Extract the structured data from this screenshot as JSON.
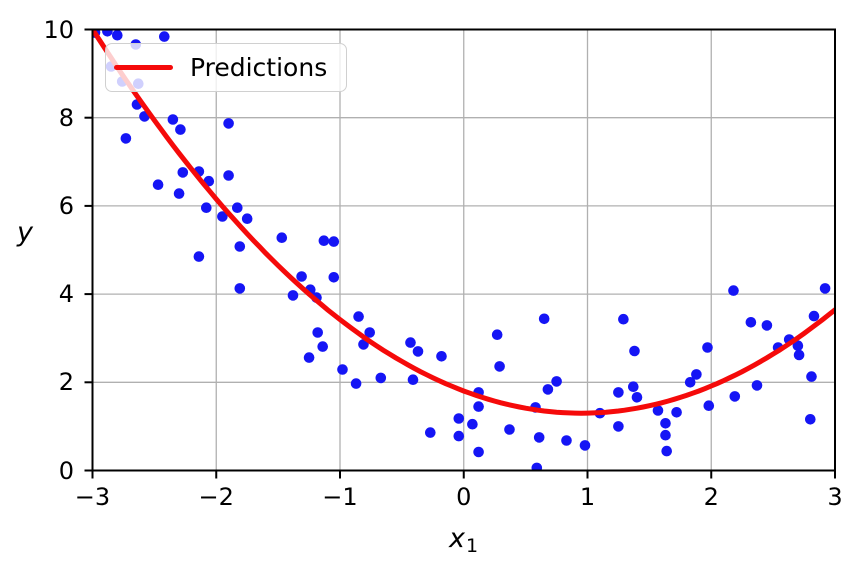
{
  "figure": {
    "kind": "matplotlib-plot",
    "background": "#ffffff"
  },
  "axes": {
    "xlabel_base": "x",
    "xlabel_sub": "1",
    "ylabel": "y",
    "xticks": [
      -3,
      -2,
      -1,
      0,
      1,
      2,
      3
    ],
    "xtick_labels": [
      "−3",
      "−2",
      "−1",
      "0",
      "1",
      "2",
      "3"
    ],
    "yticks": [
      0,
      2,
      4,
      6,
      8,
      10
    ],
    "ytick_labels": [
      "0",
      "2",
      "4",
      "6",
      "8",
      "10"
    ],
    "grid_color": "#b0b0b0",
    "spine_color": "#000000",
    "tick_color": "#000000"
  },
  "legend": {
    "label": "Predictions",
    "line_color": "#f50a0a",
    "background": "rgba(255,255,255,0.8)",
    "border_color": "#d0d0d0"
  },
  "chart_data": {
    "type": "scatter",
    "title": "",
    "xlabel": "x_1",
    "ylabel": "y",
    "xlim": [
      -3,
      3
    ],
    "ylim": [
      0,
      10
    ],
    "grid": true,
    "legend_position": "upper left",
    "series": [
      {
        "name": "training-data",
        "type": "scatter",
        "color": "#1515f5",
        "marker_radius": 5.3,
        "points": [
          [
            -2.98,
            9.93
          ],
          [
            -2.88,
            9.96
          ],
          [
            -2.8,
            9.87
          ],
          [
            -2.42,
            9.84
          ],
          [
            -2.65,
            9.66
          ],
          [
            -2.85,
            9.16
          ],
          [
            -2.76,
            8.82
          ],
          [
            -2.63,
            8.77
          ],
          [
            -2.64,
            8.3
          ],
          [
            -2.58,
            8.03
          ],
          [
            -2.35,
            7.96
          ],
          [
            -2.29,
            7.73
          ],
          [
            -2.73,
            7.53
          ],
          [
            -1.9,
            7.87
          ],
          [
            -2.47,
            6.48
          ],
          [
            -2.3,
            6.28
          ],
          [
            -2.27,
            6.76
          ],
          [
            -2.14,
            6.78
          ],
          [
            -2.06,
            6.56
          ],
          [
            -1.9,
            6.69
          ],
          [
            -2.08,
            5.96
          ],
          [
            -1.95,
            5.76
          ],
          [
            -1.83,
            5.96
          ],
          [
            -1.75,
            5.71
          ],
          [
            -1.47,
            5.28
          ],
          [
            -1.81,
            5.08
          ],
          [
            -2.14,
            4.85
          ],
          [
            -1.13,
            5.21
          ],
          [
            -1.05,
            5.19
          ],
          [
            -1.31,
            4.4
          ],
          [
            -1.05,
            4.38
          ],
          [
            -1.24,
            4.1
          ],
          [
            -1.38,
            3.97
          ],
          [
            -1.19,
            3.92
          ],
          [
            -1.81,
            4.13
          ],
          [
            -0.85,
            3.49
          ],
          [
            -1.18,
            3.13
          ],
          [
            -0.76,
            3.13
          ],
          [
            -1.14,
            2.81
          ],
          [
            -0.81,
            2.86
          ],
          [
            -1.25,
            2.56
          ],
          [
            -0.43,
            2.9
          ],
          [
            -0.37,
            2.7
          ],
          [
            -0.18,
            2.59
          ],
          [
            -0.98,
            2.29
          ],
          [
            -0.87,
            1.97
          ],
          [
            -0.67,
            2.1
          ],
          [
            -0.41,
            2.06
          ],
          [
            -0.27,
            0.86
          ],
          [
            -0.04,
            1.18
          ],
          [
            -0.04,
            0.78
          ],
          [
            0.07,
            1.05
          ],
          [
            0.12,
            1.77
          ],
          [
            0.12,
            1.45
          ],
          [
            0.12,
            0.42
          ],
          [
            0.27,
            3.08
          ],
          [
            0.29,
            2.36
          ],
          [
            0.37,
            0.93
          ],
          [
            0.58,
            1.43
          ],
          [
            0.61,
            0.75
          ],
          [
            0.59,
            0.06
          ],
          [
            0.65,
            3.44
          ],
          [
            0.68,
            1.84
          ],
          [
            0.75,
            2.02
          ],
          [
            0.83,
            0.68
          ],
          [
            0.98,
            0.57
          ],
          [
            1.1,
            1.3
          ],
          [
            1.25,
            1.77
          ],
          [
            1.25,
            1.0
          ],
          [
            1.29,
            3.43
          ],
          [
            1.38,
            2.71
          ],
          [
            1.37,
            1.9
          ],
          [
            1.4,
            1.66
          ],
          [
            1.57,
            1.36
          ],
          [
            1.63,
            1.07
          ],
          [
            1.63,
            0.8
          ],
          [
            1.64,
            0.44
          ],
          [
            1.72,
            1.32
          ],
          [
            1.83,
            2.0
          ],
          [
            1.88,
            2.18
          ],
          [
            1.97,
            2.79
          ],
          [
            1.98,
            1.47
          ],
          [
            2.18,
            4.08
          ],
          [
            2.19,
            1.68
          ],
          [
            2.32,
            3.36
          ],
          [
            2.45,
            3.29
          ],
          [
            2.37,
            1.93
          ],
          [
            2.54,
            2.79
          ],
          [
            2.63,
            2.97
          ],
          [
            2.7,
            2.83
          ],
          [
            2.71,
            2.62
          ],
          [
            2.81,
            2.13
          ],
          [
            2.8,
            1.16
          ],
          [
            2.83,
            3.5
          ],
          [
            2.92,
            4.13
          ]
        ]
      },
      {
        "name": "Predictions",
        "type": "line",
        "color": "#f50a0a",
        "line_width": 5,
        "model": "quadratic",
        "coefficients": {
          "a": 0.558,
          "x0": 0.95,
          "c": 1.3
        },
        "x_range": [
          -3,
          3
        ]
      }
    ]
  }
}
